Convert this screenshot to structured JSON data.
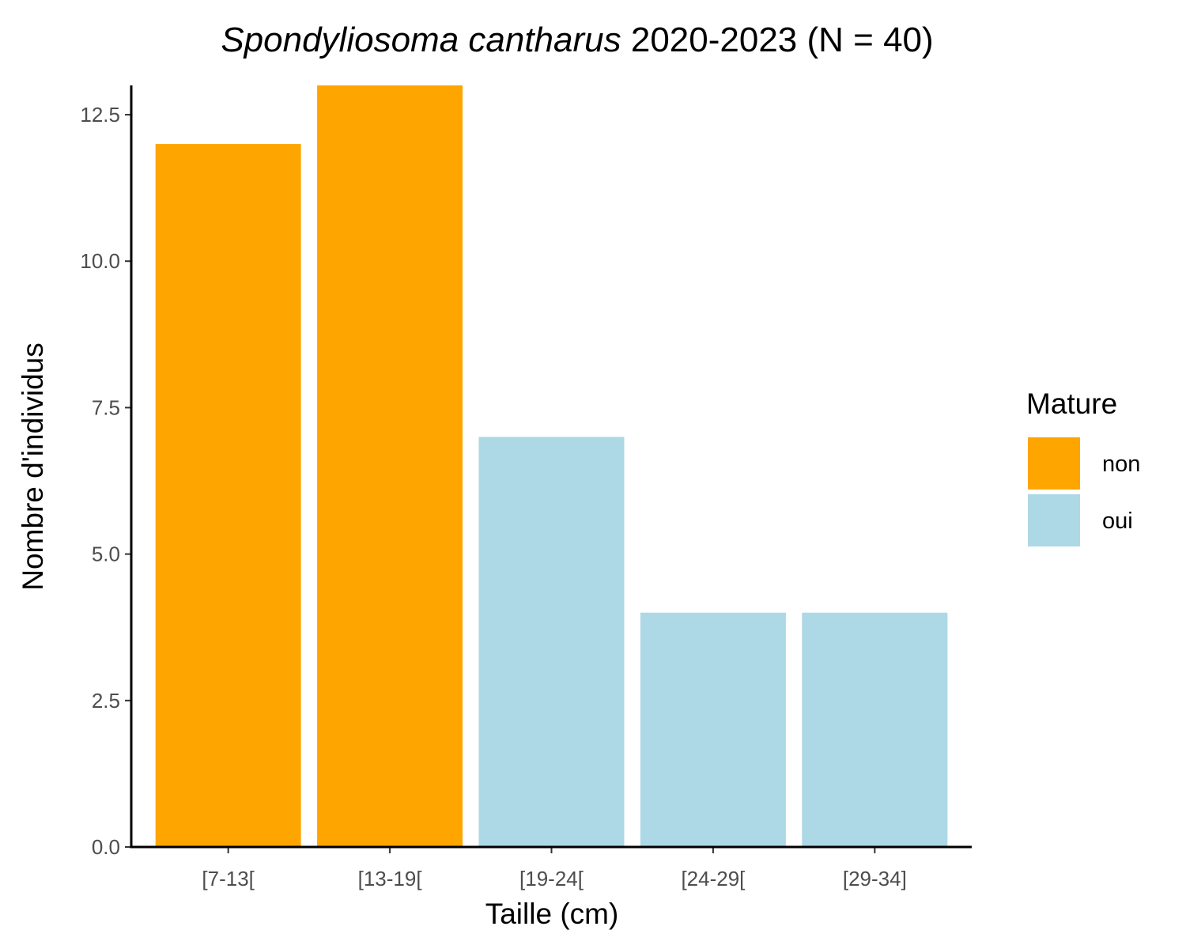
{
  "chart_data": {
    "type": "bar",
    "title": {
      "species": "Spondyliosoma cantharus",
      "rest": " 2020-2023 (N = 40)"
    },
    "xlabel": "Taille (cm)",
    "ylabel": "Nombre d'individus",
    "categories": [
      "[7-13[",
      "[13-19[",
      "[19-24[",
      "[24-29[",
      "[29-34]"
    ],
    "values": [
      12,
      13,
      7,
      4,
      4
    ],
    "mature": [
      "non",
      "non",
      "oui",
      "oui",
      "oui"
    ],
    "ylim": [
      0,
      13
    ],
    "yticks": [
      0,
      2.5,
      5,
      7.5,
      10,
      12.5
    ],
    "ytick_labels": [
      "0.0",
      "2.5",
      "5.0",
      "7.5",
      "10.0",
      "12.5"
    ],
    "grid": false,
    "legend": {
      "title": "Mature",
      "placement": "right",
      "entries": [
        {
          "label": "non",
          "color": "#FFA500"
        },
        {
          "label": "oui",
          "color": "#ADD8E6"
        }
      ]
    }
  }
}
